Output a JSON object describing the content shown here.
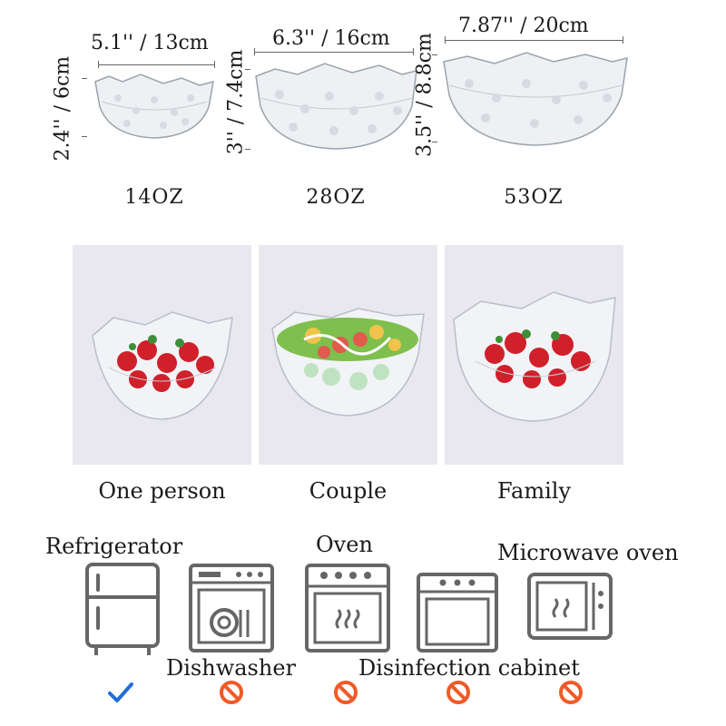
{
  "sizes": [
    {
      "width": "5.1'' / 13cm",
      "height": "2.4'' / 6cm",
      "capacity": "14OZ"
    },
    {
      "width": "6.3'' / 16cm",
      "height": "3'' / 7.4cm",
      "capacity": "28OZ"
    },
    {
      "width": "7.87'' / 20cm",
      "height": "3.5'' / 8.8cm",
      "capacity": "53OZ"
    }
  ],
  "uses": [
    "One person",
    "Couple",
    "Family"
  ],
  "appliances": {
    "refrigerator": "Refrigerator",
    "dishwasher": "Dishwasher",
    "oven": "Oven",
    "disinfection_cabinet": "Disinfection cabinet",
    "microwave": "Microwave oven"
  },
  "compatibility": [
    "allowed",
    "not-allowed",
    "not-allowed",
    "not-allowed",
    "not-allowed"
  ],
  "colors": {
    "check": "#1f6fd9",
    "prohibited": "#f05a28",
    "icon": "#666666",
    "photo_bg": "#e9e8ef"
  }
}
